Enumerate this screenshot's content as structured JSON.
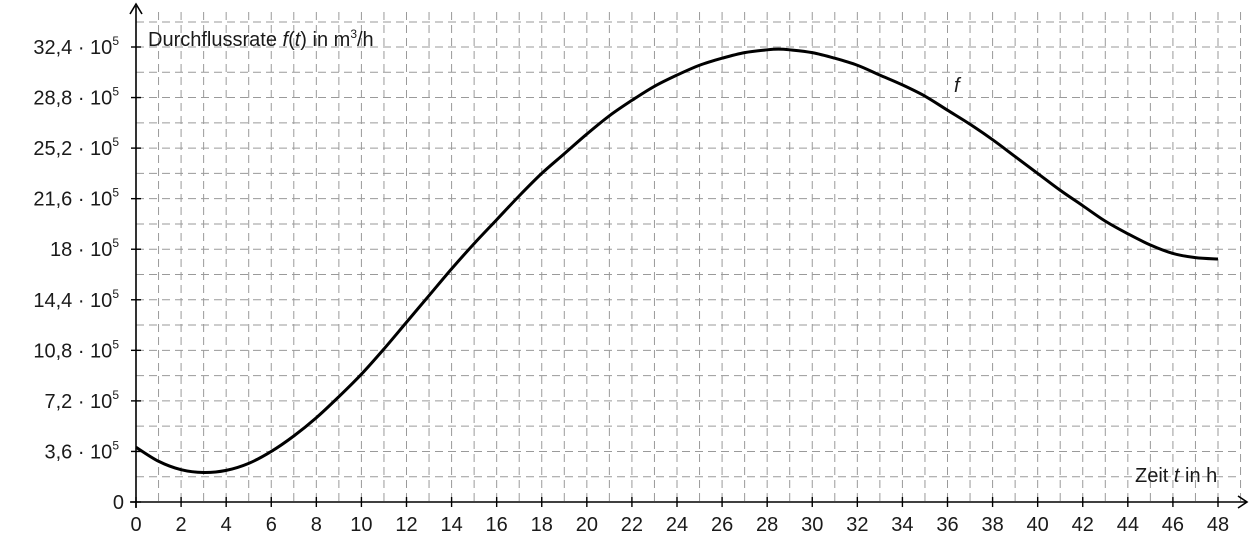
{
  "chart_data": {
    "type": "line",
    "title": "",
    "xlabel": {
      "pre": "Zeit ",
      "var": "t",
      "post": " in h"
    },
    "ylabel": {
      "pre": "Durchflussrate ",
      "fn": "f",
      "open": "(",
      "var": "t",
      "close": ")",
      "mid": " in m",
      "sup": "3",
      "post": "/h"
    },
    "series_label": "f",
    "xlim": [
      0,
      48
    ],
    "ylim": [
      0,
      3240000
    ],
    "grid": true,
    "x_ticks": [
      {
        "value": 0,
        "label": "0"
      },
      {
        "value": 2,
        "label": "2"
      },
      {
        "value": 4,
        "label": "4"
      },
      {
        "value": 6,
        "label": "6"
      },
      {
        "value": 8,
        "label": "8"
      },
      {
        "value": 10,
        "label": "10"
      },
      {
        "value": 12,
        "label": "12"
      },
      {
        "value": 14,
        "label": "14"
      },
      {
        "value": 16,
        "label": "16"
      },
      {
        "value": 18,
        "label": "18"
      },
      {
        "value": 20,
        "label": "20"
      },
      {
        "value": 22,
        "label": "22"
      },
      {
        "value": 24,
        "label": "24"
      },
      {
        "value": 26,
        "label": "26"
      },
      {
        "value": 28,
        "label": "28"
      },
      {
        "value": 30,
        "label": "30"
      },
      {
        "value": 32,
        "label": "32"
      },
      {
        "value": 34,
        "label": "34"
      },
      {
        "value": 36,
        "label": "36"
      },
      {
        "value": 38,
        "label": "38"
      },
      {
        "value": 40,
        "label": "40"
      },
      {
        "value": 42,
        "label": "42"
      },
      {
        "value": 44,
        "label": "44"
      },
      {
        "value": 46,
        "label": "46"
      },
      {
        "value": 48,
        "label": "48"
      }
    ],
    "y_ticks": [
      {
        "value": 0,
        "label": "0",
        "exp": ""
      },
      {
        "value": 360000,
        "label": "3,6 · 10",
        "exp": "5"
      },
      {
        "value": 720000,
        "label": "7,2 · 10",
        "exp": "5"
      },
      {
        "value": 1080000,
        "label": "10,8 · 10",
        "exp": "5"
      },
      {
        "value": 1440000,
        "label": "14,4 · 10",
        "exp": "5"
      },
      {
        "value": 1800000,
        "label": "18 · 10",
        "exp": "5"
      },
      {
        "value": 2160000,
        "label": "21,6 · 10",
        "exp": "5"
      },
      {
        "value": 2520000,
        "label": "25,2 · 10",
        "exp": "5"
      },
      {
        "value": 2880000,
        "label": "28,8 · 10",
        "exp": "5"
      },
      {
        "value": 3240000,
        "label": "32,4 · 10",
        "exp": "5"
      }
    ],
    "series": [
      {
        "x": [
          0,
          1,
          2,
          3,
          4,
          5,
          6,
          7,
          8,
          9,
          10,
          11,
          12,
          13,
          14,
          15,
          16,
          17,
          18,
          19,
          20,
          21,
          22,
          23,
          24,
          25,
          26,
          27,
          28,
          28.5,
          29,
          30,
          31,
          32,
          33,
          34,
          35,
          36,
          37,
          38,
          39,
          40,
          41,
          42,
          43,
          44,
          45,
          46,
          47,
          48
        ],
        "y": [
          390000,
          290000,
          230000,
          210000,
          225000,
          275000,
          360000,
          470000,
          600000,
          750000,
          910000,
          1090000,
          1280000,
          1470000,
          1660000,
          1840000,
          2010000,
          2180000,
          2340000,
          2480000,
          2620000,
          2750000,
          2860000,
          2960000,
          3040000,
          3110000,
          3160000,
          3200000,
          3220000,
          3225000,
          3220000,
          3200000,
          3160000,
          3110000,
          3040000,
          2970000,
          2890000,
          2790000,
          2690000,
          2580000,
          2460000,
          2340000,
          2220000,
          2110000,
          2000000,
          1910000,
          1830000,
          1770000,
          1740000,
          1730000
        ]
      }
    ]
  }
}
